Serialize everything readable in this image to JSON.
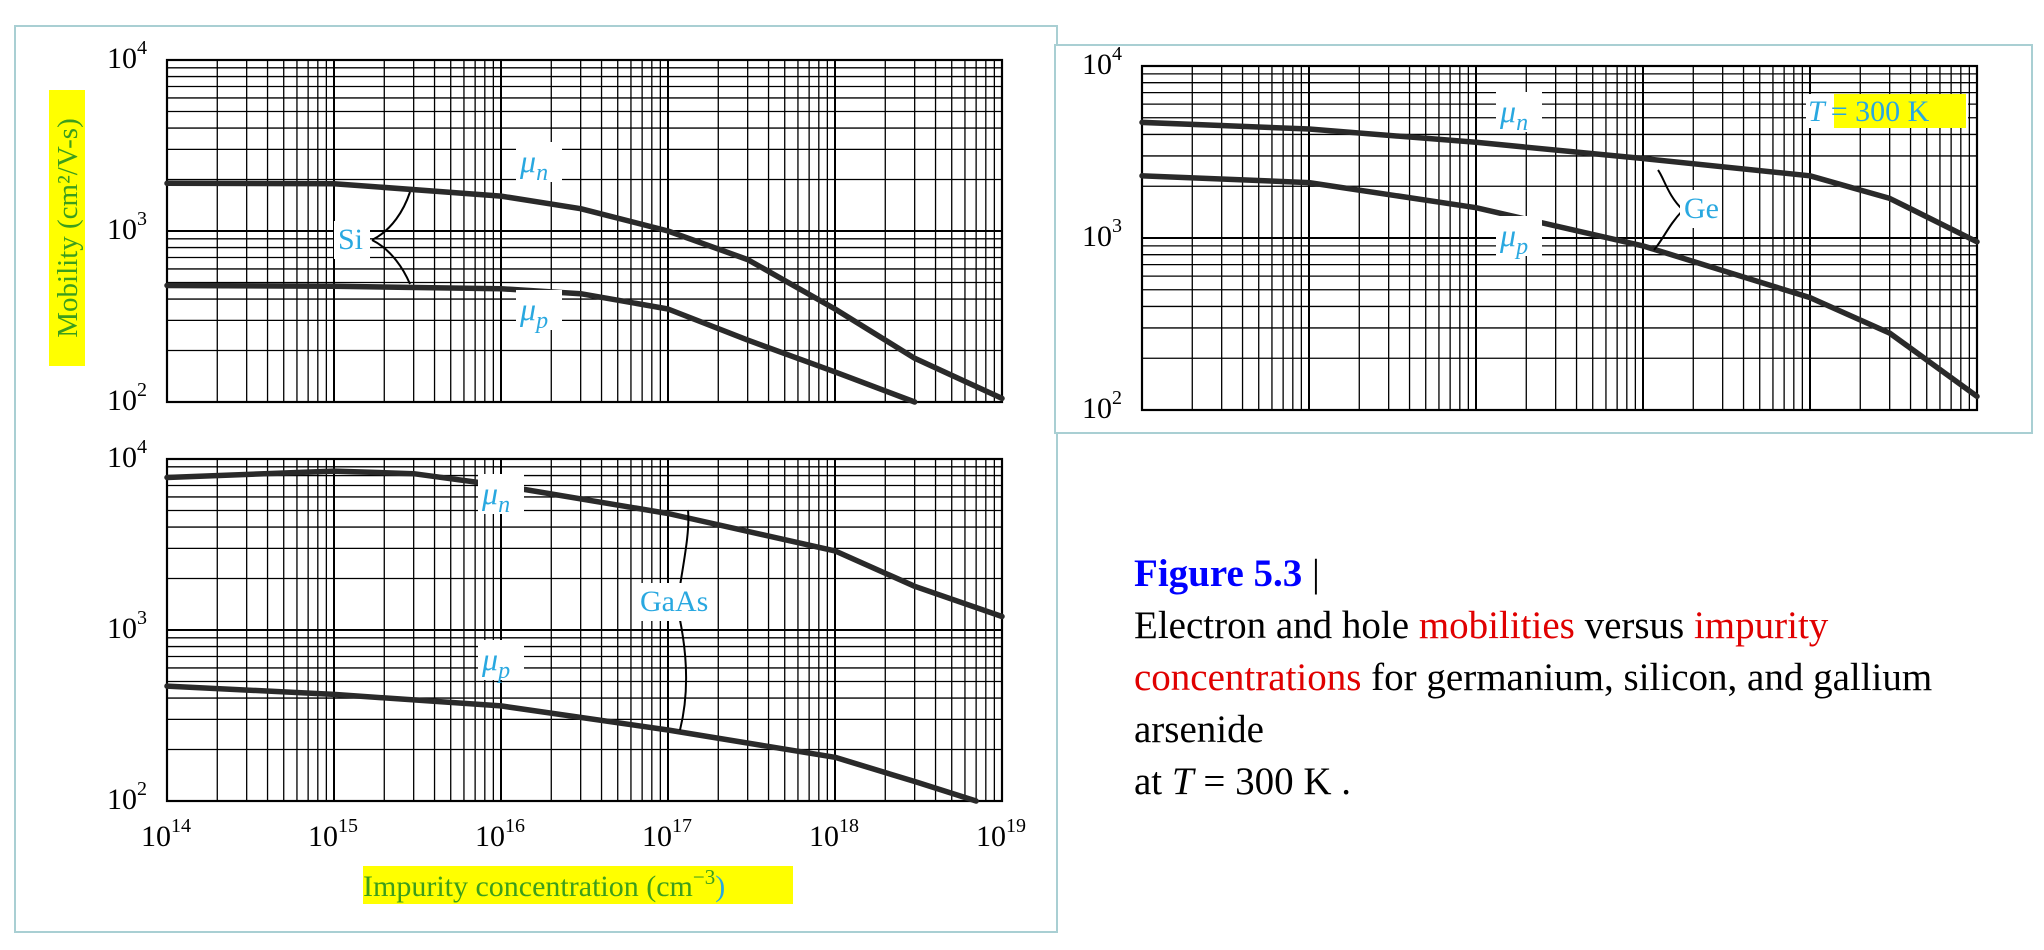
{
  "figure": {
    "ylabel": "Mobility (cm²/V-s)",
    "xlabel_main": "Impurity concentration (cm",
    "xlabel_exp": "−3",
    "xlabel_close": ")",
    "x_ticks": [
      "14",
      "15",
      "16",
      "17",
      "18",
      "19"
    ],
    "y_ticks": [
      "4",
      "3",
      "2"
    ],
    "tick_base": "10",
    "temperature_label": "= 300 K",
    "temperature_symbol": "T",
    "mu_symbol": "μ",
    "mu_n_sub": "n",
    "mu_p_sub": "p",
    "curve_color": "#2a2a2a",
    "label_color": "#29a8e0",
    "highlight_color": "#ffff00",
    "axis_label_color": "#3c9e1c"
  },
  "caption": {
    "title": "Figure 5.3",
    "separator": " |",
    "line_part1": "Electron and hole ",
    "term1": "mobilities",
    "line_part2": " versus ",
    "term2": "impurity concentrations",
    "line_part3": " for germanium, silicon, and gallium arsenide",
    "line_part4_prefix": "at ",
    "line_part4_symbol": "T",
    "line_part4_suffix": " = 300 K ."
  },
  "chart_data": [
    {
      "type": "line",
      "material": "Si",
      "x_scale": "log",
      "y_scale": "log",
      "xlim": [
        100000000000000.0,
        1e+19
      ],
      "ylim": [
        100,
        10000
      ],
      "grid": true,
      "series": [
        {
          "name": "μn",
          "x": [
            100000000000000.0,
            1000000000000000.0,
            1e+16,
            3e+16,
            1e+17,
            3e+17,
            1e+18,
            3e+18,
            1e+19
          ],
          "values": [
            1900,
            1890,
            1600,
            1350,
            1000,
            680,
            350,
            180,
            105
          ]
        },
        {
          "name": "μp",
          "x": [
            100000000000000.0,
            1000000000000000.0,
            1e+16,
            3e+16,
            1e+17,
            3e+17,
            1e+18,
            3e+18
          ],
          "values": [
            480,
            475,
            460,
            430,
            350,
            230,
            150,
            100
          ]
        }
      ]
    },
    {
      "type": "line",
      "material": "GaAs",
      "x_scale": "log",
      "y_scale": "log",
      "xlim": [
        100000000000000.0,
        1e+19
      ],
      "ylim": [
        100,
        10000
      ],
      "grid": true,
      "series": [
        {
          "name": "μn",
          "x": [
            100000000000000.0,
            1000000000000000.0,
            3000000000000000.0,
            1e+16,
            1e+17,
            1e+18,
            3e+18,
            1e+19
          ],
          "values": [
            7800,
            8500,
            8200,
            7000,
            4800,
            2900,
            1800,
            1200
          ]
        },
        {
          "name": "μp",
          "x": [
            100000000000000.0,
            1000000000000000.0,
            1e+16,
            1e+17,
            1e+18,
            3e+18,
            7e+18
          ],
          "values": [
            470,
            420,
            360,
            260,
            180,
            130,
            100
          ]
        }
      ]
    },
    {
      "type": "line",
      "material": "Ge",
      "temperature": "T = 300 K",
      "x_scale": "log",
      "y_scale": "log",
      "xlim": [
        100000000000000.0,
        1e+19
      ],
      "ylim": [
        100,
        10000
      ],
      "grid": true,
      "series": [
        {
          "name": "μn",
          "x": [
            100000000000000.0,
            1000000000000000.0,
            1e+16,
            1e+17,
            1e+18,
            3e+18,
            1e+19
          ],
          "values": [
            4700,
            4300,
            3600,
            2900,
            2300,
            1700,
            950
          ]
        },
        {
          "name": "μp",
          "x": [
            100000000000000.0,
            1000000000000000.0,
            1e+16,
            1e+17,
            1e+18,
            3e+18,
            1e+19
          ],
          "values": [
            2300,
            2100,
            1500,
            900,
            450,
            280,
            120
          ]
        }
      ]
    }
  ]
}
